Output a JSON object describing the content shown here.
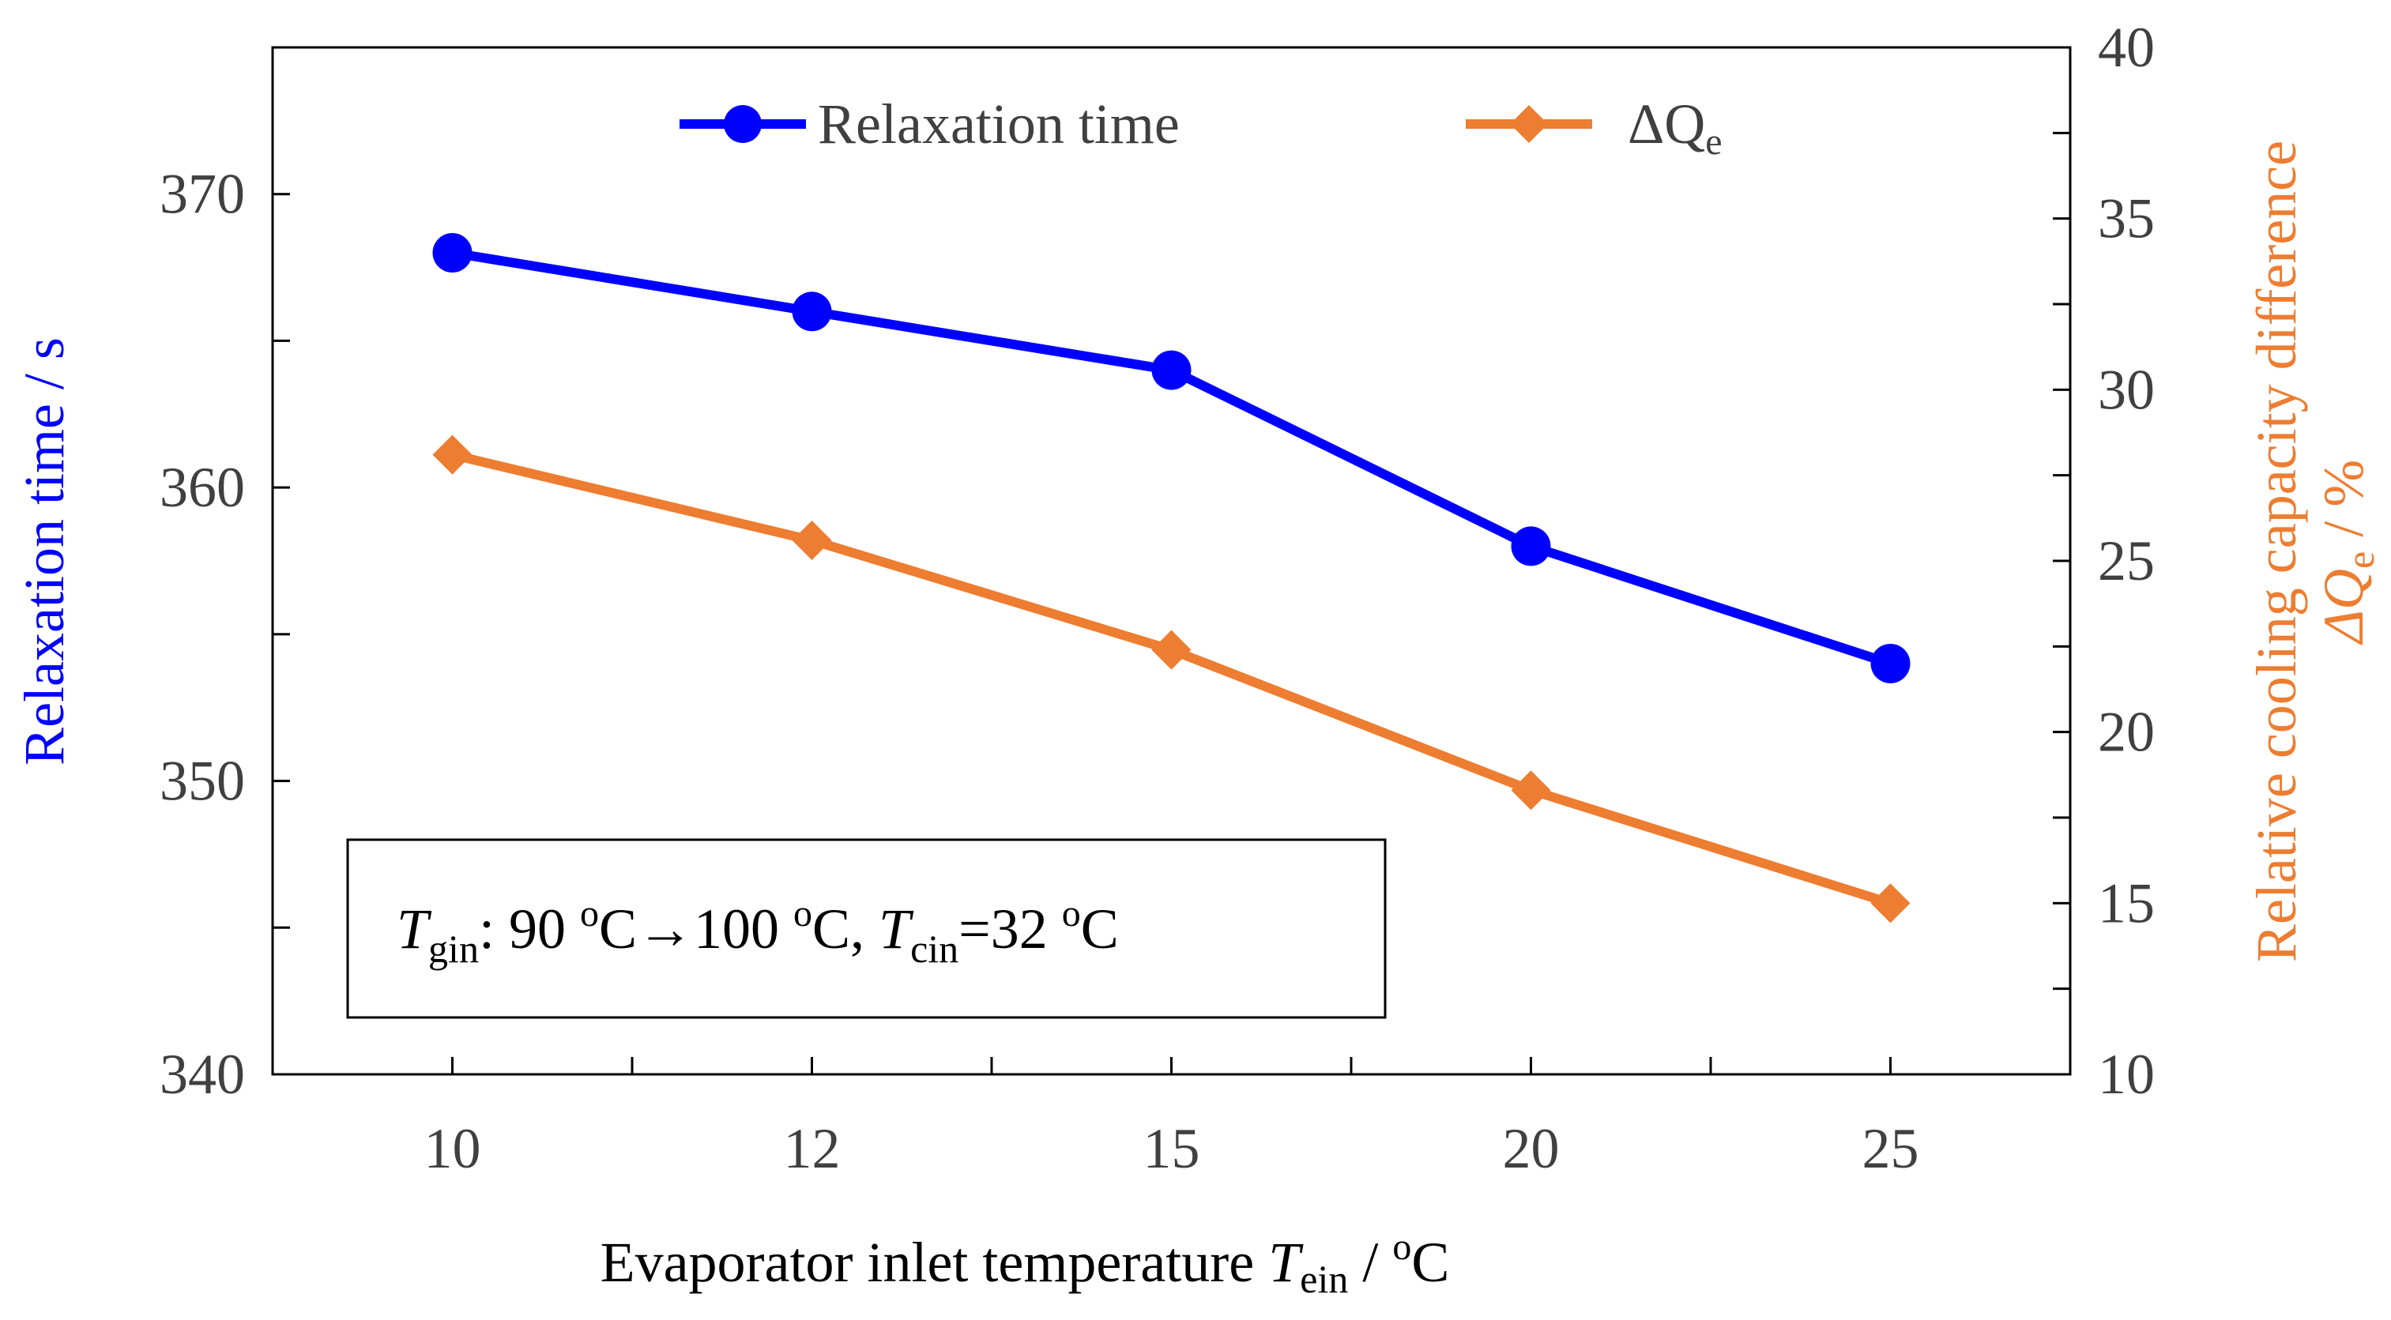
{
  "chart_data": {
    "type": "line",
    "dual_axis": true,
    "x": [
      10,
      12,
      15,
      20,
      25
    ],
    "x_tick_labels": [
      "10",
      "12",
      "15",
      "20",
      "25"
    ],
    "xlabel": {
      "prefix": "Evaporator inlet temperature ",
      "symbol": "T",
      "subscript": "ein",
      "unit_prefix": " / ",
      "unit_sup": "o",
      "unit_suffix": "C"
    },
    "y_left": {
      "label": "Relaxation time / s",
      "range": [
        340,
        375
      ],
      "major_ticks": [
        340,
        350,
        360,
        370
      ],
      "tick_labels": [
        "340",
        "350",
        "360",
        "370"
      ],
      "minor_step": 5,
      "color": "#0000ff"
    },
    "y_right": {
      "label_line1": "Relative cooling capacity difference",
      "label_symbol": "ΔQ",
      "label_subscript": "e",
      "label_unit": " / %",
      "range": [
        10,
        40
      ],
      "major_ticks": [
        10,
        15,
        20,
        25,
        30,
        35,
        40
      ],
      "tick_labels": [
        "10",
        "15",
        "20",
        "25",
        "30",
        "35",
        "40"
      ],
      "minor_step": 2.5,
      "color": "#ed7d31"
    },
    "series": [
      {
        "name": "Relaxation time",
        "axis": "left",
        "marker": "circle",
        "color": "#0000ff",
        "values": [
          368,
          366,
          364,
          358,
          354
        ]
      },
      {
        "name_symbol": "ΔQ",
        "name_subscript": "e",
        "axis": "right",
        "marker": "diamond",
        "color": "#ed7d31",
        "values": [
          28.1,
          25.6,
          22.4,
          18.3,
          15.0
        ]
      }
    ],
    "legend": {
      "placement": "top",
      "entries": [
        "Relaxation time",
        "ΔQe"
      ]
    },
    "annotation": {
      "t1_symbol": "T",
      "t1_sub": "gin",
      "t1_text": ": 90 ",
      "deg_sup_1": "o",
      "arrow_text": "C→100 ",
      "deg_sup_2": "o",
      "mid_text": "C, ",
      "t2_symbol": "T",
      "t2_sub": "cin",
      "eq_text": "=32 ",
      "deg_sup_3": "o",
      "end_text": "C"
    }
  }
}
